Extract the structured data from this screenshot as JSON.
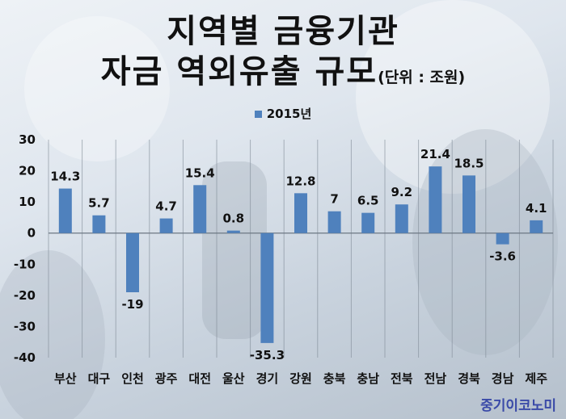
{
  "title_line1": "지역별 금융기관",
  "title_line2": "자금 역외유출 규모",
  "unit": "(단위 : 조원)",
  "brand": "중기이코노미",
  "chart_data": {
    "type": "bar",
    "title": "지역별 금융기관 자금 역외유출 규모",
    "unit": "(단위 : 조원)",
    "legend_position": "top",
    "grid": false,
    "ylim": [
      -40,
      30
    ],
    "yticks": [
      "30",
      "20",
      "10",
      "0",
      "-10",
      "-20",
      "-30",
      "-40"
    ],
    "categories": [
      "부산",
      "대구",
      "인천",
      "광주",
      "대전",
      "울산",
      "경기",
      "강원",
      "충북",
      "충남",
      "전북",
      "전남",
      "경북",
      "경남",
      "제주"
    ],
    "series": [
      {
        "name": "2015년",
        "color": "#4f81bd",
        "values": [
          14.3,
          5.7,
          -19,
          4.7,
          15.4,
          0.8,
          -35.3,
          12.8,
          7,
          6.5,
          9.2,
          21.4,
          18.5,
          -3.6,
          4.1
        ],
        "labels": [
          "14.3",
          "5.7",
          "-19",
          "4.7",
          "15.4",
          "0.8",
          "-35.3",
          "12.8",
          "7",
          "6.5",
          "9.2",
          "21.4",
          "18.5",
          "-3.6",
          "4.1"
        ]
      }
    ]
  }
}
